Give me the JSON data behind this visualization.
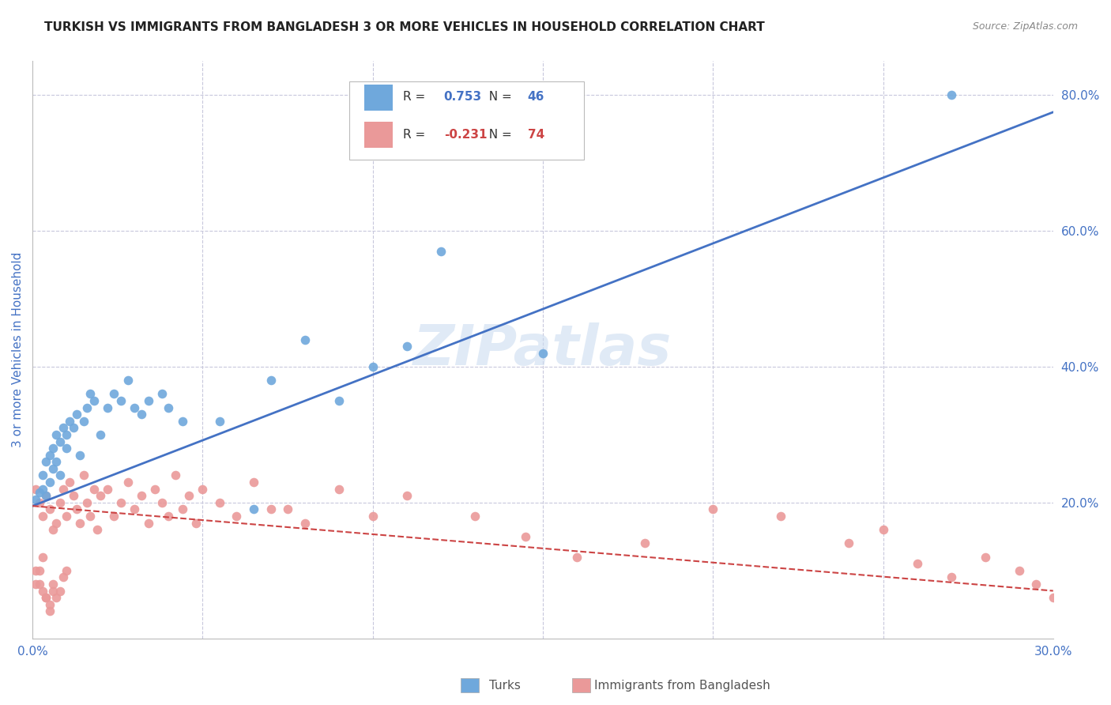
{
  "title": "TURKISH VS IMMIGRANTS FROM BANGLADESH 3 OR MORE VEHICLES IN HOUSEHOLD CORRELATION CHART",
  "source": "Source: ZipAtlas.com",
  "ylabel": "3 or more Vehicles in Household",
  "xlim": [
    0.0,
    0.3
  ],
  "ylim": [
    0.0,
    0.85
  ],
  "legend_blue_r": "0.753",
  "legend_blue_n": "46",
  "legend_pink_r": "-0.231",
  "legend_pink_n": "74",
  "blue_color": "#6fa8dc",
  "pink_color": "#ea9999",
  "line_blue_color": "#4472c4",
  "line_pink_color": "#cc4444",
  "axis_color": "#4472c4",
  "grid_color": "#c8c8dc",
  "watermark": "ZIPatlas",
  "blue_line_x0": 0.0,
  "blue_line_y0": 0.195,
  "blue_line_x1": 0.3,
  "blue_line_y1": 0.775,
  "pink_line_x0": 0.0,
  "pink_line_y0": 0.195,
  "pink_line_x1": 0.3,
  "pink_line_y1": 0.07,
  "turks_x": [
    0.001,
    0.002,
    0.003,
    0.003,
    0.004,
    0.004,
    0.005,
    0.005,
    0.006,
    0.006,
    0.007,
    0.007,
    0.008,
    0.008,
    0.009,
    0.01,
    0.01,
    0.011,
    0.012,
    0.013,
    0.014,
    0.015,
    0.016,
    0.017,
    0.018,
    0.02,
    0.022,
    0.024,
    0.026,
    0.028,
    0.03,
    0.032,
    0.034,
    0.038,
    0.04,
    0.044,
    0.055,
    0.065,
    0.07,
    0.08,
    0.09,
    0.1,
    0.11,
    0.12,
    0.15,
    0.27
  ],
  "turks_y": [
    0.205,
    0.215,
    0.22,
    0.24,
    0.21,
    0.26,
    0.23,
    0.27,
    0.25,
    0.28,
    0.26,
    0.3,
    0.24,
    0.29,
    0.31,
    0.28,
    0.3,
    0.32,
    0.31,
    0.33,
    0.27,
    0.32,
    0.34,
    0.36,
    0.35,
    0.3,
    0.34,
    0.36,
    0.35,
    0.38,
    0.34,
    0.33,
    0.35,
    0.36,
    0.34,
    0.32,
    0.32,
    0.19,
    0.38,
    0.44,
    0.35,
    0.4,
    0.43,
    0.57,
    0.42,
    0.8
  ],
  "bangladesh_x": [
    0.001,
    0.001,
    0.002,
    0.002,
    0.003,
    0.003,
    0.004,
    0.004,
    0.005,
    0.005,
    0.006,
    0.006,
    0.007,
    0.007,
    0.008,
    0.008,
    0.009,
    0.009,
    0.01,
    0.01,
    0.011,
    0.012,
    0.013,
    0.014,
    0.015,
    0.016,
    0.017,
    0.018,
    0.019,
    0.02,
    0.022,
    0.024,
    0.026,
    0.028,
    0.03,
    0.032,
    0.034,
    0.036,
    0.038,
    0.04,
    0.042,
    0.044,
    0.046,
    0.048,
    0.05,
    0.055,
    0.06,
    0.065,
    0.07,
    0.075,
    0.08,
    0.09,
    0.1,
    0.11,
    0.13,
    0.145,
    0.16,
    0.18,
    0.2,
    0.22,
    0.24,
    0.25,
    0.26,
    0.27,
    0.28,
    0.29,
    0.295,
    0.3,
    0.001,
    0.002,
    0.003,
    0.004,
    0.005,
    0.006
  ],
  "bangladesh_y": [
    0.22,
    0.1,
    0.2,
    0.08,
    0.18,
    0.07,
    0.21,
    0.06,
    0.19,
    0.05,
    0.16,
    0.08,
    0.17,
    0.06,
    0.2,
    0.07,
    0.22,
    0.09,
    0.18,
    0.1,
    0.23,
    0.21,
    0.19,
    0.17,
    0.24,
    0.2,
    0.18,
    0.22,
    0.16,
    0.21,
    0.22,
    0.18,
    0.2,
    0.23,
    0.19,
    0.21,
    0.17,
    0.22,
    0.2,
    0.18,
    0.24,
    0.19,
    0.21,
    0.17,
    0.22,
    0.2,
    0.18,
    0.23,
    0.19,
    0.19,
    0.17,
    0.22,
    0.18,
    0.21,
    0.18,
    0.15,
    0.12,
    0.14,
    0.19,
    0.18,
    0.14,
    0.16,
    0.11,
    0.09,
    0.12,
    0.1,
    0.08,
    0.06,
    0.08,
    0.1,
    0.12,
    0.06,
    0.04,
    0.07
  ]
}
